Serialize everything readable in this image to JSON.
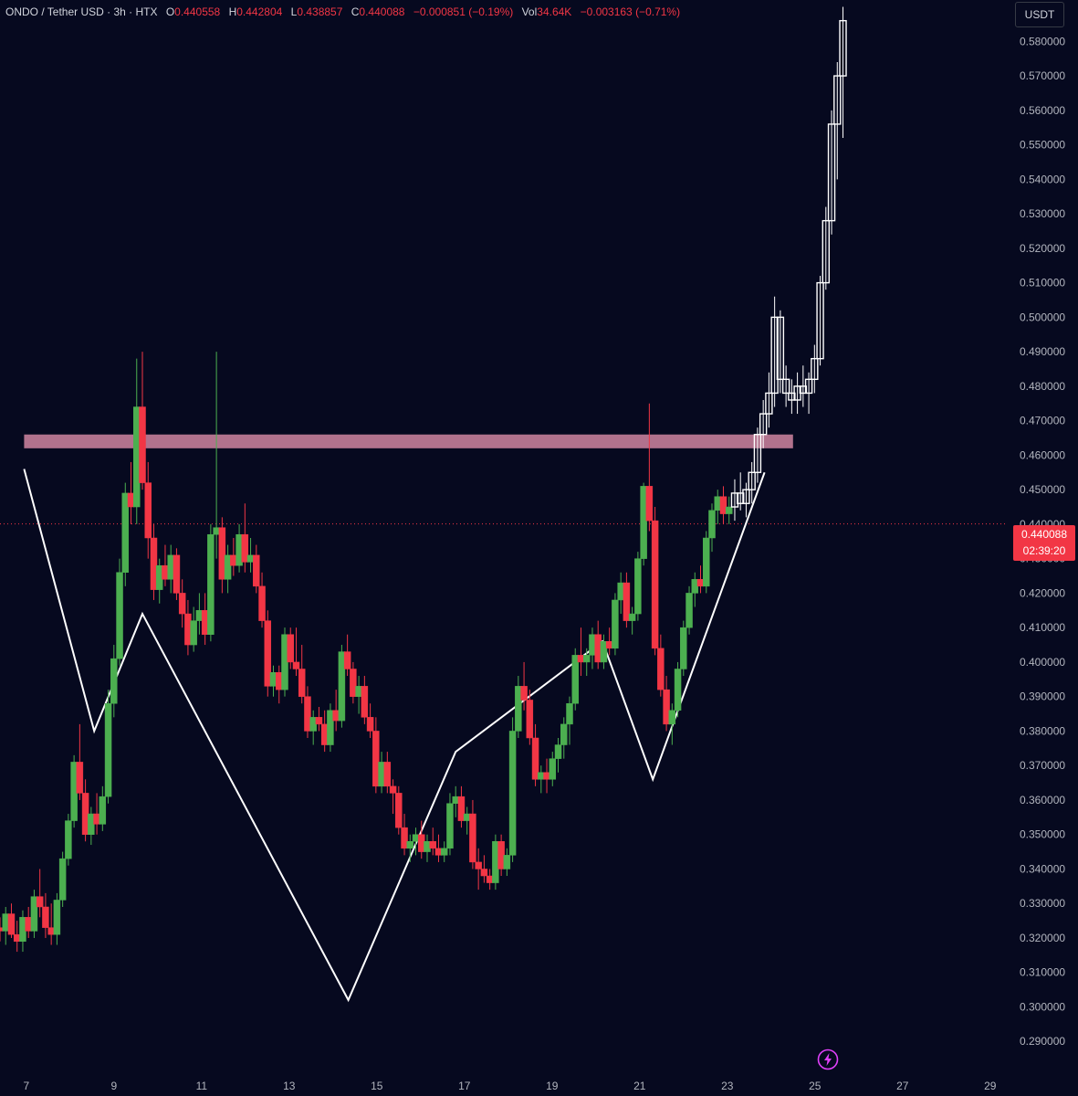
{
  "header": {
    "symbol": "ONDO / Tether USD · 3h · HTX",
    "open_label": "O",
    "open": "0.440558",
    "high_label": "H",
    "high": "0.442804",
    "low_label": "L",
    "low": "0.438857",
    "close_label": "C",
    "close": "0.440088",
    "change": "−0.000851 (−0.19%)",
    "vol_label": "Vol",
    "vol": "34.64K",
    "vol_change": "−0.003163 (−0.71%)"
  },
  "price_axis": {
    "unit": "USDT"
  },
  "current_price": {
    "value": "0.440088",
    "countdown": "02:39:20"
  },
  "colors": {
    "background": "#06091f",
    "up": "#4caf50",
    "down": "#f23645",
    "projection": "#ffffff",
    "pattern_line": "#ffffff",
    "resistance_zone": "#d78aa6",
    "last_price": "#f23645",
    "axis_text": "#b2b5be"
  },
  "icons": {
    "bolt": "lightning-icon"
  },
  "chart_data": {
    "type": "candlestick",
    "title": "",
    "x_ticks": [
      "7",
      "9",
      "11",
      "13",
      "15",
      "17",
      "19",
      "21",
      "23",
      "25",
      "27",
      "29"
    ],
    "y_ticks": [
      "0.290000",
      "0.300000",
      "0.310000",
      "0.320000",
      "0.330000",
      "0.340000",
      "0.350000",
      "0.360000",
      "0.370000",
      "0.380000",
      "0.390000",
      "0.400000",
      "0.410000",
      "0.420000",
      "0.430000",
      "0.440000",
      "0.450000",
      "0.460000",
      "0.470000",
      "0.480000",
      "0.490000",
      "0.500000",
      "0.510000",
      "0.520000",
      "0.530000",
      "0.540000",
      "0.550000",
      "0.560000",
      "0.570000",
      "0.580000"
    ],
    "ylim": [
      0.28,
      0.592
    ],
    "xlim": [
      6.4,
      29.4
    ],
    "price_candles": [
      [
        6.4,
        0.323,
        0.326,
        0.319,
        0.322
      ],
      [
        6.53,
        0.322,
        0.329,
        0.318,
        0.327
      ],
      [
        6.66,
        0.327,
        0.33,
        0.32,
        0.321
      ],
      [
        6.79,
        0.321,
        0.325,
        0.316,
        0.319
      ],
      [
        6.92,
        0.319,
        0.328,
        0.316,
        0.326
      ],
      [
        7.05,
        0.326,
        0.329,
        0.32,
        0.322
      ],
      [
        7.18,
        0.322,
        0.334,
        0.32,
        0.332
      ],
      [
        7.31,
        0.332,
        0.34,
        0.326,
        0.329
      ],
      [
        7.44,
        0.329,
        0.333,
        0.32,
        0.323
      ],
      [
        7.57,
        0.323,
        0.33,
        0.318,
        0.321
      ],
      [
        7.7,
        0.321,
        0.333,
        0.318,
        0.331
      ],
      [
        7.83,
        0.331,
        0.345,
        0.329,
        0.343
      ],
      [
        7.96,
        0.343,
        0.356,
        0.341,
        0.354
      ],
      [
        8.09,
        0.354,
        0.373,
        0.352,
        0.371
      ],
      [
        8.22,
        0.371,
        0.382,
        0.36,
        0.362
      ],
      [
        8.35,
        0.362,
        0.366,
        0.348,
        0.35
      ],
      [
        8.48,
        0.35,
        0.358,
        0.347,
        0.356
      ],
      [
        8.61,
        0.356,
        0.362,
        0.35,
        0.353
      ],
      [
        8.74,
        0.353,
        0.364,
        0.351,
        0.361
      ],
      [
        8.87,
        0.361,
        0.392,
        0.359,
        0.388
      ],
      [
        9.0,
        0.388,
        0.405,
        0.384,
        0.401
      ],
      [
        9.13,
        0.401,
        0.43,
        0.399,
        0.426
      ],
      [
        9.26,
        0.426,
        0.452,
        0.422,
        0.449
      ],
      [
        9.39,
        0.449,
        0.458,
        0.44,
        0.445
      ],
      [
        9.52,
        0.445,
        0.488,
        0.44,
        0.474
      ],
      [
        9.65,
        0.474,
        0.49,
        0.45,
        0.452
      ],
      [
        9.78,
        0.452,
        0.458,
        0.43,
        0.436
      ],
      [
        9.91,
        0.436,
        0.44,
        0.418,
        0.421
      ],
      [
        10.04,
        0.421,
        0.43,
        0.417,
        0.428
      ],
      [
        10.17,
        0.428,
        0.434,
        0.422,
        0.424
      ],
      [
        10.3,
        0.424,
        0.434,
        0.42,
        0.431
      ],
      [
        10.43,
        0.431,
        0.433,
        0.418,
        0.42
      ],
      [
        10.56,
        0.42,
        0.424,
        0.41,
        0.414
      ],
      [
        10.69,
        0.414,
        0.418,
        0.402,
        0.405
      ],
      [
        10.82,
        0.405,
        0.416,
        0.403,
        0.412
      ],
      [
        10.95,
        0.412,
        0.42,
        0.408,
        0.415
      ],
      [
        11.08,
        0.415,
        0.42,
        0.405,
        0.408
      ],
      [
        11.21,
        0.408,
        0.44,
        0.406,
        0.437
      ],
      [
        11.34,
        0.437,
        0.49,
        0.43,
        0.439
      ],
      [
        11.47,
        0.439,
        0.442,
        0.42,
        0.424
      ],
      [
        11.6,
        0.424,
        0.434,
        0.42,
        0.431
      ],
      [
        11.73,
        0.431,
        0.436,
        0.425,
        0.428
      ],
      [
        11.86,
        0.428,
        0.44,
        0.426,
        0.437
      ],
      [
        11.99,
        0.437,
        0.446,
        0.426,
        0.429
      ],
      [
        12.12,
        0.429,
        0.436,
        0.426,
        0.431
      ],
      [
        12.25,
        0.431,
        0.434,
        0.42,
        0.422
      ],
      [
        12.38,
        0.422,
        0.426,
        0.41,
        0.412
      ],
      [
        12.51,
        0.412,
        0.415,
        0.39,
        0.393
      ],
      [
        12.64,
        0.393,
        0.399,
        0.39,
        0.397
      ],
      [
        12.77,
        0.397,
        0.399,
        0.388,
        0.392
      ],
      [
        12.9,
        0.392,
        0.41,
        0.39,
        0.408
      ],
      [
        13.03,
        0.408,
        0.41,
        0.398,
        0.4
      ],
      [
        13.16,
        0.4,
        0.41,
        0.396,
        0.398
      ],
      [
        13.29,
        0.398,
        0.405,
        0.388,
        0.39
      ],
      [
        13.42,
        0.39,
        0.393,
        0.378,
        0.38
      ],
      [
        13.55,
        0.38,
        0.386,
        0.376,
        0.384
      ],
      [
        13.68,
        0.384,
        0.387,
        0.38,
        0.382
      ],
      [
        13.81,
        0.382,
        0.386,
        0.374,
        0.376
      ],
      [
        13.94,
        0.376,
        0.388,
        0.374,
        0.386
      ],
      [
        14.07,
        0.386,
        0.392,
        0.38,
        0.383
      ],
      [
        14.2,
        0.383,
        0.405,
        0.381,
        0.403
      ],
      [
        14.33,
        0.403,
        0.408,
        0.396,
        0.398
      ],
      [
        14.46,
        0.398,
        0.4,
        0.388,
        0.39
      ],
      [
        14.59,
        0.39,
        0.396,
        0.385,
        0.393
      ],
      [
        14.72,
        0.393,
        0.396,
        0.382,
        0.384
      ],
      [
        14.85,
        0.384,
        0.388,
        0.378,
        0.38
      ],
      [
        14.98,
        0.38,
        0.384,
        0.362,
        0.364
      ],
      [
        15.11,
        0.364,
        0.374,
        0.362,
        0.371
      ],
      [
        15.24,
        0.371,
        0.374,
        0.362,
        0.364
      ],
      [
        15.37,
        0.364,
        0.366,
        0.356,
        0.362
      ],
      [
        15.5,
        0.362,
        0.364,
        0.35,
        0.352
      ],
      [
        15.63,
        0.352,
        0.356,
        0.344,
        0.346
      ],
      [
        15.76,
        0.346,
        0.35,
        0.342,
        0.348
      ],
      [
        15.89,
        0.348,
        0.352,
        0.344,
        0.35
      ],
      [
        16.02,
        0.35,
        0.354,
        0.343,
        0.345
      ],
      [
        16.15,
        0.345,
        0.35,
        0.342,
        0.348
      ],
      [
        16.28,
        0.348,
        0.352,
        0.344,
        0.346
      ],
      [
        16.41,
        0.346,
        0.35,
        0.342,
        0.344
      ],
      [
        16.54,
        0.344,
        0.348,
        0.342,
        0.346
      ],
      [
        16.67,
        0.346,
        0.362,
        0.344,
        0.359
      ],
      [
        16.8,
        0.359,
        0.364,
        0.355,
        0.361
      ],
      [
        16.93,
        0.361,
        0.364,
        0.352,
        0.354
      ],
      [
        17.06,
        0.354,
        0.358,
        0.35,
        0.356
      ],
      [
        17.19,
        0.356,
        0.36,
        0.34,
        0.342
      ],
      [
        17.32,
        0.342,
        0.346,
        0.334,
        0.34
      ],
      [
        17.45,
        0.34,
        0.344,
        0.336,
        0.338
      ],
      [
        17.58,
        0.338,
        0.34,
        0.334,
        0.336
      ],
      [
        17.71,
        0.336,
        0.35,
        0.334,
        0.348
      ],
      [
        17.84,
        0.348,
        0.35,
        0.338,
        0.34
      ],
      [
        17.97,
        0.34,
        0.346,
        0.338,
        0.344
      ],
      [
        18.1,
        0.344,
        0.384,
        0.342,
        0.38
      ],
      [
        18.23,
        0.38,
        0.396,
        0.378,
        0.393
      ],
      [
        18.36,
        0.393,
        0.4,
        0.386,
        0.389
      ],
      [
        18.49,
        0.389,
        0.392,
        0.376,
        0.378
      ],
      [
        18.62,
        0.378,
        0.382,
        0.364,
        0.366
      ],
      [
        18.75,
        0.366,
        0.37,
        0.362,
        0.368
      ],
      [
        18.88,
        0.368,
        0.372,
        0.362,
        0.366
      ],
      [
        19.01,
        0.366,
        0.374,
        0.364,
        0.372
      ],
      [
        19.14,
        0.372,
        0.378,
        0.368,
        0.376
      ],
      [
        19.27,
        0.376,
        0.384,
        0.372,
        0.382
      ],
      [
        19.4,
        0.382,
        0.39,
        0.376,
        0.388
      ],
      [
        19.53,
        0.388,
        0.404,
        0.386,
        0.402
      ],
      [
        19.66,
        0.402,
        0.41,
        0.396,
        0.4
      ],
      [
        19.79,
        0.4,
        0.404,
        0.396,
        0.402
      ],
      [
        19.92,
        0.402,
        0.41,
        0.398,
        0.408
      ],
      [
        20.05,
        0.408,
        0.412,
        0.398,
        0.4
      ],
      [
        20.18,
        0.4,
        0.408,
        0.398,
        0.406
      ],
      [
        20.31,
        0.406,
        0.41,
        0.402,
        0.404
      ],
      [
        20.44,
        0.404,
        0.42,
        0.402,
        0.418
      ],
      [
        20.57,
        0.418,
        0.426,
        0.414,
        0.423
      ],
      [
        20.7,
        0.423,
        0.426,
        0.41,
        0.412
      ],
      [
        20.83,
        0.412,
        0.416,
        0.408,
        0.414
      ],
      [
        20.96,
        0.414,
        0.432,
        0.412,
        0.43
      ],
      [
        21.09,
        0.43,
        0.452,
        0.428,
        0.451
      ],
      [
        21.22,
        0.451,
        0.475,
        0.438,
        0.441
      ],
      [
        21.35,
        0.441,
        0.445,
        0.402,
        0.404
      ],
      [
        21.48,
        0.404,
        0.408,
        0.39,
        0.392
      ],
      [
        21.61,
        0.392,
        0.396,
        0.38,
        0.382
      ],
      [
        21.74,
        0.382,
        0.388,
        0.376,
        0.386
      ],
      [
        21.87,
        0.386,
        0.4,
        0.384,
        0.398
      ],
      [
        22.0,
        0.398,
        0.412,
        0.396,
        0.41
      ],
      [
        22.13,
        0.41,
        0.422,
        0.408,
        0.42
      ],
      [
        22.26,
        0.42,
        0.426,
        0.416,
        0.424
      ],
      [
        22.39,
        0.424,
        0.428,
        0.42,
        0.422
      ],
      [
        22.52,
        0.422,
        0.438,
        0.42,
        0.436
      ],
      [
        22.65,
        0.436,
        0.446,
        0.432,
        0.444
      ],
      [
        22.78,
        0.444,
        0.45,
        0.44,
        0.448
      ],
      [
        22.91,
        0.448,
        0.451,
        0.44,
        0.443
      ],
      [
        23.04,
        0.443,
        0.448,
        0.44,
        0.445
      ]
    ],
    "projection_candles": [
      [
        23.17,
        0.445,
        0.453,
        0.441,
        0.449
      ],
      [
        23.3,
        0.449,
        0.455,
        0.444,
        0.446
      ],
      [
        23.43,
        0.446,
        0.452,
        0.442,
        0.45
      ],
      [
        23.56,
        0.45,
        0.458,
        0.446,
        0.455
      ],
      [
        23.69,
        0.455,
        0.468,
        0.452,
        0.466
      ],
      [
        23.82,
        0.466,
        0.476,
        0.462,
        0.472
      ],
      [
        23.95,
        0.472,
        0.484,
        0.468,
        0.478
      ],
      [
        24.08,
        0.478,
        0.506,
        0.474,
        0.5
      ],
      [
        24.21,
        0.5,
        0.502,
        0.478,
        0.482
      ],
      [
        24.34,
        0.482,
        0.486,
        0.474,
        0.478
      ],
      [
        24.47,
        0.478,
        0.482,
        0.472,
        0.476
      ],
      [
        24.6,
        0.476,
        0.484,
        0.472,
        0.48
      ],
      [
        24.73,
        0.48,
        0.486,
        0.474,
        0.478
      ],
      [
        24.86,
        0.478,
        0.484,
        0.472,
        0.482
      ],
      [
        24.99,
        0.482,
        0.492,
        0.478,
        0.488
      ],
      [
        25.12,
        0.488,
        0.512,
        0.486,
        0.51
      ],
      [
        25.25,
        0.51,
        0.532,
        0.508,
        0.528
      ],
      [
        25.38,
        0.528,
        0.56,
        0.524,
        0.556
      ],
      [
        25.51,
        0.556,
        0.574,
        0.54,
        0.57
      ],
      [
        25.64,
        0.57,
        0.59,
        0.552,
        0.586
      ]
    ],
    "pattern_lines": [
      {
        "name": "inverse-head-and-shoulders",
        "points": [
          [
            6.95,
            0.456
          ],
          [
            8.55,
            0.38
          ],
          [
            9.65,
            0.414
          ],
          [
            14.35,
            0.302
          ],
          [
            16.8,
            0.374
          ],
          [
            20.15,
            0.406
          ],
          [
            21.3,
            0.366
          ],
          [
            23.85,
            0.455
          ]
        ]
      }
    ],
    "resistance_zone": {
      "from": 0.462,
      "to": 0.466,
      "x_from": 6.95,
      "x_to": 24.5
    },
    "last_price_line": 0.440088
  }
}
